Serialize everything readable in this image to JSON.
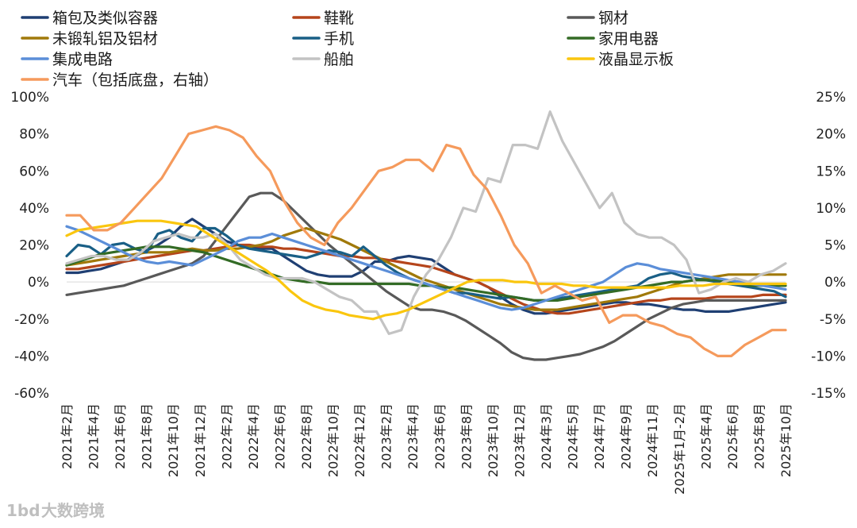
{
  "chart_data": {
    "type": "line",
    "title": "",
    "left_axis": {
      "min": -60,
      "max": 100,
      "step": 20,
      "unit": "%"
    },
    "right_axis": {
      "min": -15,
      "max": 25,
      "step": 5,
      "unit": "%"
    },
    "x_ticks": [
      "2021年2月",
      "2021年4月",
      "2021年6月",
      "2021年8月",
      "2021年10月",
      "2021年12月",
      "2022年2月",
      "2022年4月",
      "2022年6月",
      "2022年8月",
      "2022年10月",
      "2022年12月",
      "2023年2月",
      "2023年4月",
      "2023年6月",
      "2023年8月",
      "2023年10月",
      "2023年12月",
      "2024年3月",
      "2024年5月",
      "2024年7月",
      "2024年9月",
      "2024年11月",
      "2025年1月-2月",
      "2025年4月",
      "2025年6月",
      "2025年8月",
      "2025年10月"
    ],
    "series": [
      {
        "name": "箱包及类似容器",
        "color": "#1f3f73",
        "axis": "left",
        "values": [
          5,
          5,
          6,
          7,
          9,
          11,
          14,
          17,
          20,
          24,
          30,
          34,
          30,
          26,
          22,
          20,
          19,
          18,
          18,
          14,
          10,
          6,
          4,
          3,
          3,
          3,
          6,
          11,
          11,
          13,
          14,
          13,
          12,
          8,
          4,
          2,
          0,
          -3,
          -8,
          -12,
          -15,
          -17,
          -17,
          -16,
          -15,
          -14,
          -13,
          -12,
          -11,
          -11,
          -12,
          -12,
          -13,
          -14,
          -15,
          -15,
          -16,
          -16,
          -16,
          -15,
          -14,
          -13,
          -12,
          -11
        ]
      },
      {
        "name": "鞋靴",
        "color": "#b5451b",
        "axis": "left",
        "values": [
          7,
          7,
          8,
          9,
          10,
          11,
          12,
          13,
          14,
          15,
          16,
          17,
          17,
          18,
          19,
          20,
          20,
          19,
          19,
          18,
          18,
          17,
          16,
          15,
          14,
          14,
          13,
          13,
          12,
          11,
          10,
          9,
          8,
          6,
          4,
          2,
          0,
          -3,
          -6,
          -9,
          -12,
          -14,
          -16,
          -17,
          -17,
          -16,
          -15,
          -14,
          -13,
          -12,
          -11,
          -10,
          -10,
          -9,
          -9,
          -9,
          -9,
          -8,
          -8,
          -8,
          -8,
          -7,
          -7,
          -7
        ]
      },
      {
        "name": "钢材",
        "color": "#595959",
        "axis": "left",
        "values": [
          -7,
          -6,
          -5,
          -4,
          -3,
          -2,
          0,
          2,
          4,
          6,
          8,
          10,
          14,
          22,
          30,
          38,
          46,
          48,
          48,
          44,
          38,
          32,
          26,
          20,
          15,
          10,
          5,
          0,
          -5,
          -9,
          -13,
          -15,
          -15,
          -16,
          -18,
          -21,
          -25,
          -29,
          -33,
          -38,
          -41,
          -42,
          -42,
          -41,
          -40,
          -39,
          -37,
          -35,
          -32,
          -28,
          -24,
          -20,
          -17,
          -14,
          -12,
          -11,
          -10,
          -10,
          -10,
          -10,
          -10,
          -10,
          -10,
          -10
        ]
      },
      {
        "name": "未锻轧铝及铝材",
        "color": "#a0790a",
        "axis": "left",
        "values": [
          9,
          10,
          11,
          12,
          13,
          14,
          15,
          16,
          16,
          16,
          17,
          18,
          17,
          17,
          18,
          18,
          19,
          20,
          22,
          25,
          27,
          29,
          27,
          25,
          23,
          20,
          17,
          14,
          11,
          8,
          5,
          2,
          0,
          -2,
          -4,
          -6,
          -8,
          -10,
          -12,
          -13,
          -14,
          -15,
          -15,
          -15,
          -14,
          -13,
          -12,
          -11,
          -10,
          -9,
          -8,
          -6,
          -4,
          -2,
          0,
          1,
          2,
          3,
          4,
          4,
          4,
          4,
          4,
          4
        ]
      },
      {
        "name": "手机",
        "color": "#195f86",
        "axis": "left",
        "values": [
          14,
          20,
          19,
          15,
          20,
          21,
          18,
          16,
          26,
          28,
          24,
          22,
          29,
          29,
          25,
          20,
          18,
          17,
          16,
          15,
          14,
          13,
          15,
          17,
          16,
          14,
          19,
          14,
          9,
          5,
          2,
          0,
          -2,
          -4,
          -6,
          -6,
          -7,
          -8,
          -9,
          -8,
          -9,
          -10,
          -10,
          -9,
          -8,
          -7,
          -6,
          -5,
          -4,
          -3,
          -2,
          2,
          4,
          5,
          3,
          2,
          1,
          0,
          -1,
          -2,
          -3,
          -4,
          -5,
          -8
        ]
      },
      {
        "name": "家用电器",
        "color": "#336b25",
        "axis": "left",
        "values": [
          9,
          11,
          13,
          15,
          16,
          17,
          18,
          19,
          19,
          19,
          18,
          17,
          16,
          14,
          12,
          10,
          8,
          6,
          4,
          2,
          1,
          0,
          0,
          -1,
          -1,
          -1,
          -1,
          -1,
          -1,
          -1,
          -1,
          -2,
          -2,
          -3,
          -3,
          -4,
          -5,
          -6,
          -7,
          -8,
          -9,
          -10,
          -10,
          -10,
          -9,
          -8,
          -7,
          -6,
          -5,
          -4,
          -3,
          -2,
          -1,
          0,
          0,
          1,
          1,
          1,
          0,
          -1,
          -2,
          -2,
          -2,
          -2
        ]
      },
      {
        "name": "集成电路",
        "color": "#5b8ed8",
        "axis": "left",
        "values": [
          30,
          28,
          25,
          22,
          19,
          16,
          13,
          11,
          10,
          11,
          10,
          9,
          12,
          15,
          18,
          22,
          24,
          24,
          26,
          24,
          22,
          20,
          18,
          16,
          14,
          12,
          10,
          8,
          6,
          4,
          2,
          0,
          -2,
          -4,
          -6,
          -8,
          -10,
          -12,
          -14,
          -15,
          -14,
          -12,
          -10,
          -8,
          -6,
          -4,
          -2,
          0,
          4,
          8,
          10,
          9,
          7,
          6,
          5,
          4,
          3,
          2,
          1,
          0,
          -1,
          -2,
          -3,
          -4
        ]
      },
      {
        "name": "船舶",
        "color": "#c3c3c3",
        "axis": "right",
        "values": [
          2.5,
          3,
          3.5,
          3.5,
          3,
          3,
          4,
          5.5,
          6,
          6.5,
          6,
          6,
          6.5,
          5,
          3,
          2,
          1,
          0.5,
          0.5,
          0.5,
          0,
          -1,
          -2,
          -2.5,
          -4,
          -4,
          -7,
          -6.5,
          -2,
          1,
          3,
          6,
          10,
          9.5,
          14,
          13.5,
          18.5,
          18.5,
          18,
          23,
          19,
          16,
          13,
          10,
          12,
          8,
          6.5,
          6,
          6,
          5,
          3,
          -1.5,
          -1,
          0,
          0.5,
          0,
          1,
          1.5,
          2.5
        ]
      },
      {
        "name": "液晶显示板",
        "color": "#fac60e",
        "axis": "left",
        "values": [
          25,
          28,
          29,
          30,
          31,
          32,
          33,
          33,
          33,
          32,
          31,
          30,
          26,
          22,
          18,
          14,
          10,
          6,
          1,
          -5,
          -10,
          -13,
          -15,
          -16,
          -18,
          -19,
          -20,
          -18,
          -17,
          -15,
          -12,
          -9,
          -6,
          -3,
          0,
          1,
          1,
          1,
          0,
          0,
          -1,
          -1,
          -1,
          -2,
          -2,
          -3,
          -3,
          -3,
          -3,
          -3,
          -3,
          -3,
          -2,
          -2,
          -2,
          -1,
          -1,
          -1,
          -1,
          -1,
          -1,
          -1
        ]
      },
      {
        "name": "汽车（包括底盘，右轴）",
        "color": "#f59a5c",
        "axis": "right",
        "values": [
          9,
          9,
          7,
          7,
          8,
          10,
          12,
          14,
          17,
          20,
          20.5,
          21,
          20.5,
          19.5,
          17,
          15,
          11,
          8,
          6,
          5,
          8,
          10,
          12.5,
          15,
          15.5,
          16.5,
          16.5,
          15,
          18.5,
          18,
          14.5,
          12.5,
          9,
          5,
          2.5,
          -1.5,
          -0.5,
          -1.5,
          -2.5,
          -2,
          -5.5,
          -4.5,
          -4.5,
          -5.5,
          -6,
          -7,
          -7.5,
          -9,
          -10,
          -10,
          -8.5,
          -7.5,
          -6.5,
          -6.5
        ]
      }
    ],
    "legend": {
      "placement": "top",
      "columns": 3
    }
  },
  "watermark": {
    "text": "大数跨境",
    "logo": "1bd"
  }
}
